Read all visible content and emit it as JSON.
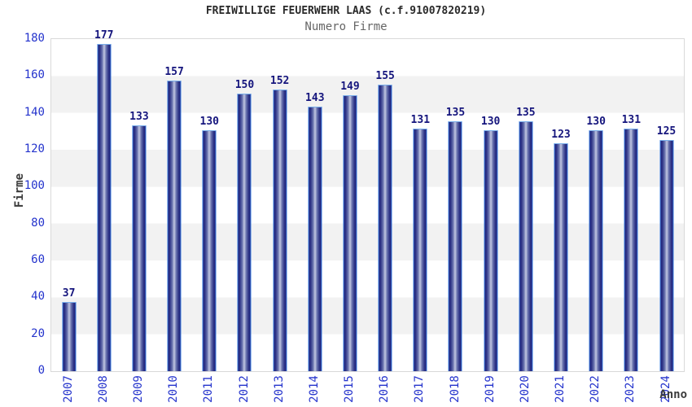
{
  "header": {
    "title": "FREIWILLIGE FEUERWEHR LAAS (c.f.91007820219)",
    "subtitle": "Numero Firme"
  },
  "chart_data": {
    "type": "bar",
    "title": "FREIWILLIGE FEUERWEHR LAAS (c.f.91007820219)",
    "subtitle": "Numero Firme",
    "xlabel": "Anno",
    "ylabel": "Firme",
    "ylim": [
      0,
      180
    ],
    "yticks": [
      0,
      20,
      40,
      60,
      80,
      100,
      120,
      140,
      160,
      180
    ],
    "grid": "horizontal-bands-alternating",
    "legend": "none",
    "categories": [
      "2007",
      "2008",
      "2009",
      "2010",
      "2011",
      "2012",
      "2013",
      "2014",
      "2015",
      "2016",
      "2017",
      "2018",
      "2019",
      "2020",
      "2021",
      "2022",
      "2023",
      "2024"
    ],
    "values": [
      37,
      177,
      133,
      157,
      130,
      150,
      152,
      143,
      149,
      155,
      131,
      135,
      130,
      135,
      123,
      130,
      131,
      125
    ]
  },
  "colors": {
    "axis_label_blue": "#2433cc",
    "value_label_navy": "#15157d",
    "bar_dark": "#202078",
    "bar_light": "#c2c8e2",
    "bar_border": "#3a7de0",
    "band_gray": "#f2f2f2",
    "title_color": "#2a2a2a",
    "subtitle_color": "#666666",
    "plot_border": "#d9d9d9"
  }
}
